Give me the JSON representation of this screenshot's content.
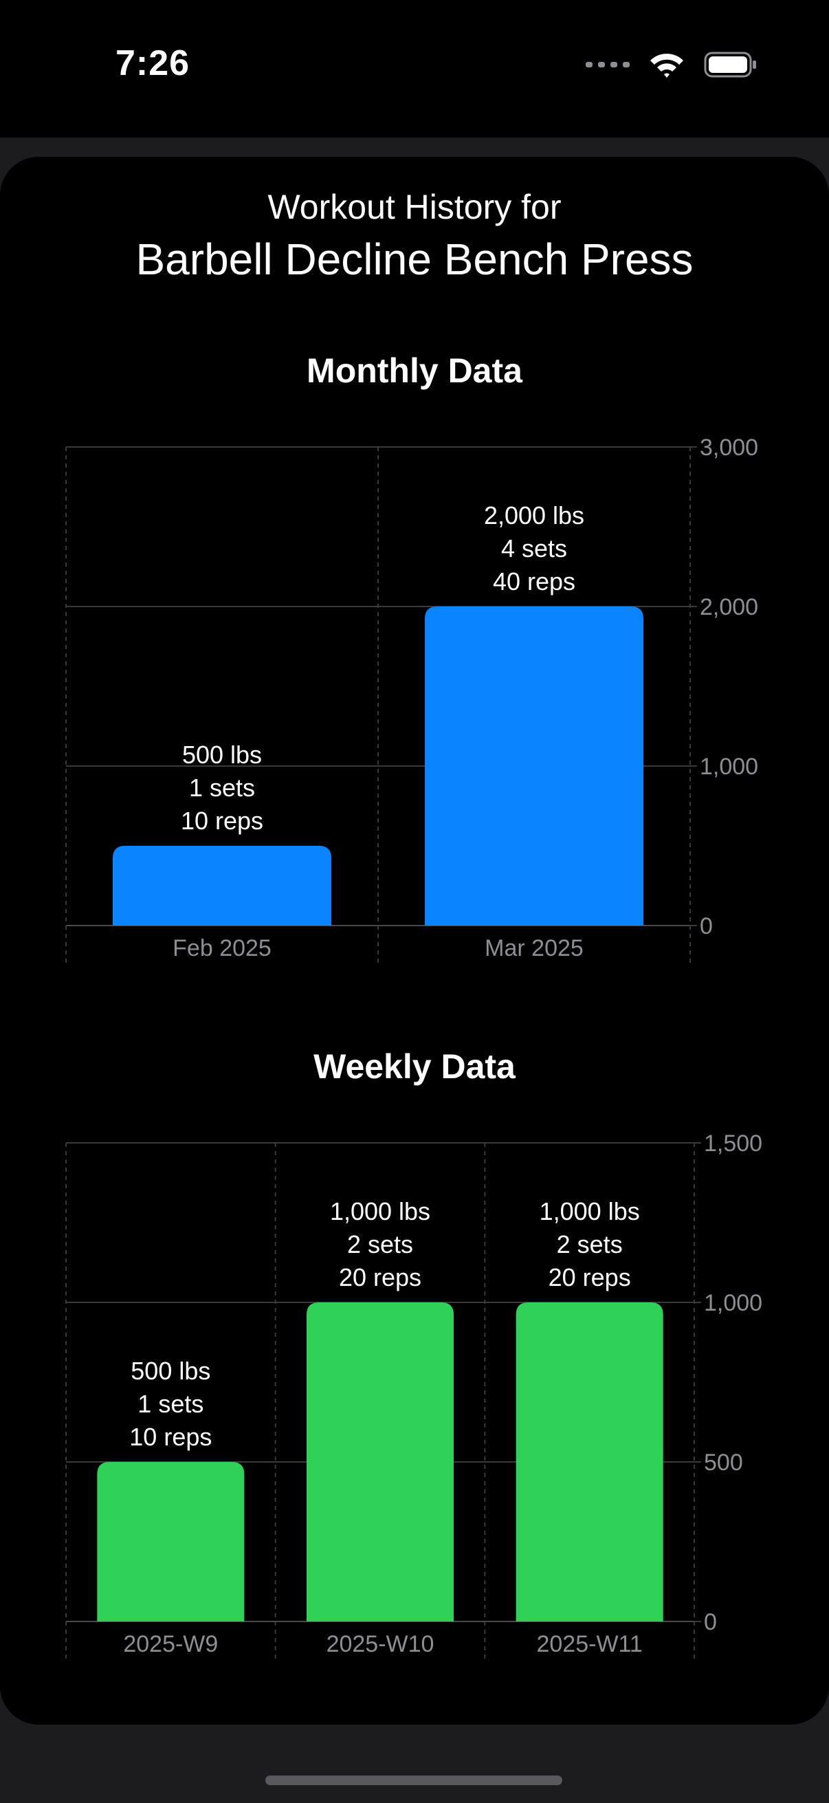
{
  "status_bar": {
    "time": "7:26",
    "icons": [
      "cellular-dots-icon",
      "wifi-icon",
      "battery-icon"
    ]
  },
  "header": {
    "line1": "Workout History for",
    "exercise": "Barbell Decline Bench Press"
  },
  "colors": {
    "monthly_bar": "#0a84ff",
    "weekly_bar": "#30d158",
    "grid": "#3a3a3c",
    "axis_text": "#8e8e93"
  },
  "chart_data": [
    {
      "type": "bar",
      "title": "Monthly Data",
      "categories": [
        "Feb 2025",
        "Mar 2025"
      ],
      "values": [
        500,
        2000
      ],
      "labels": [
        [
          "500 lbs",
          "1 sets",
          "10 reps"
        ],
        [
          "2,000 lbs",
          "4 sets",
          "40 reps"
        ]
      ],
      "yticks": [
        0,
        1000,
        2000,
        3000
      ],
      "ytick_labels": [
        "0",
        "1,000",
        "2,000",
        "3,000"
      ],
      "ylim": [
        0,
        3000
      ],
      "xlabel": "",
      "ylabel": "",
      "grid": true
    },
    {
      "type": "bar",
      "title": "Weekly Data",
      "categories": [
        "2025-W9",
        "2025-W10",
        "2025-W11"
      ],
      "values": [
        500,
        1000,
        1000
      ],
      "labels": [
        [
          "500 lbs",
          "1 sets",
          "10 reps"
        ],
        [
          "1,000 lbs",
          "2 sets",
          "20 reps"
        ],
        [
          "1,000 lbs",
          "2 sets",
          "20 reps"
        ]
      ],
      "yticks": [
        0,
        500,
        1000,
        1500
      ],
      "ytick_labels": [
        "0",
        "500",
        "1,000",
        "1,500"
      ],
      "ylim": [
        0,
        1500
      ],
      "xlabel": "",
      "ylabel": "",
      "grid": true
    }
  ]
}
